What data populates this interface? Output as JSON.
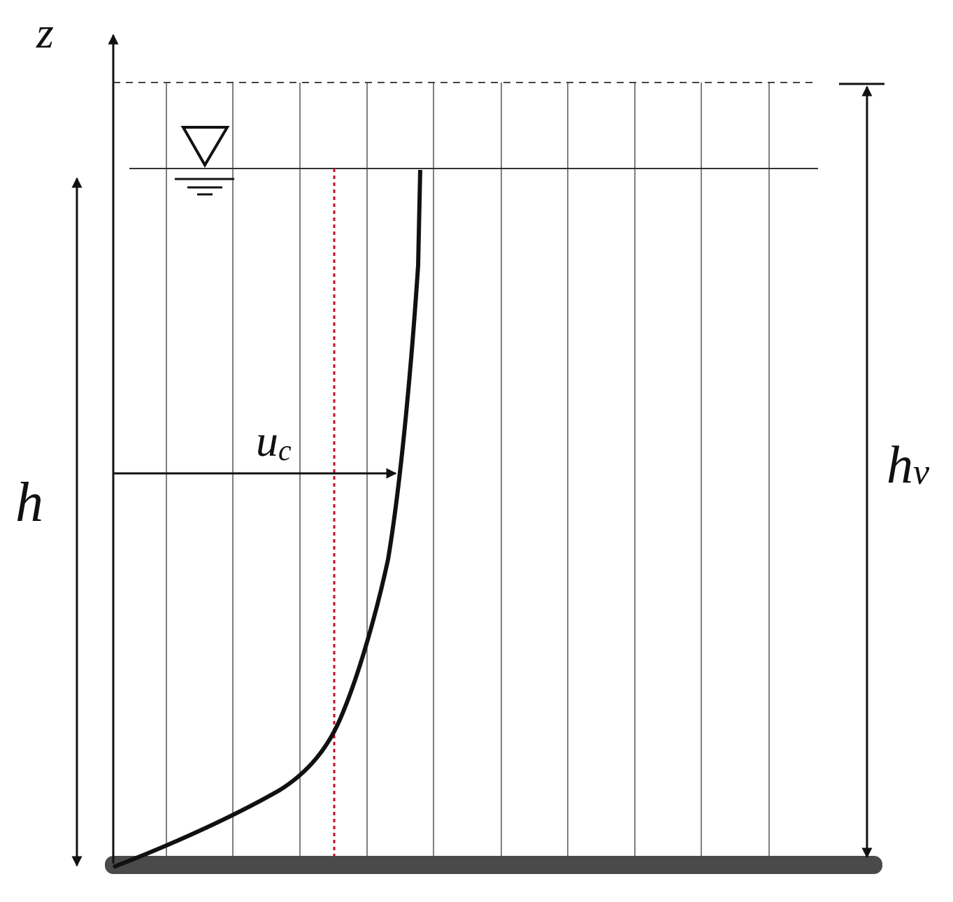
{
  "labels": {
    "z": "z",
    "h": "h",
    "uc": {
      "main": "u",
      "sub": "c"
    },
    "hv": {
      "main": "h",
      "sub": "v"
    }
  }
}
